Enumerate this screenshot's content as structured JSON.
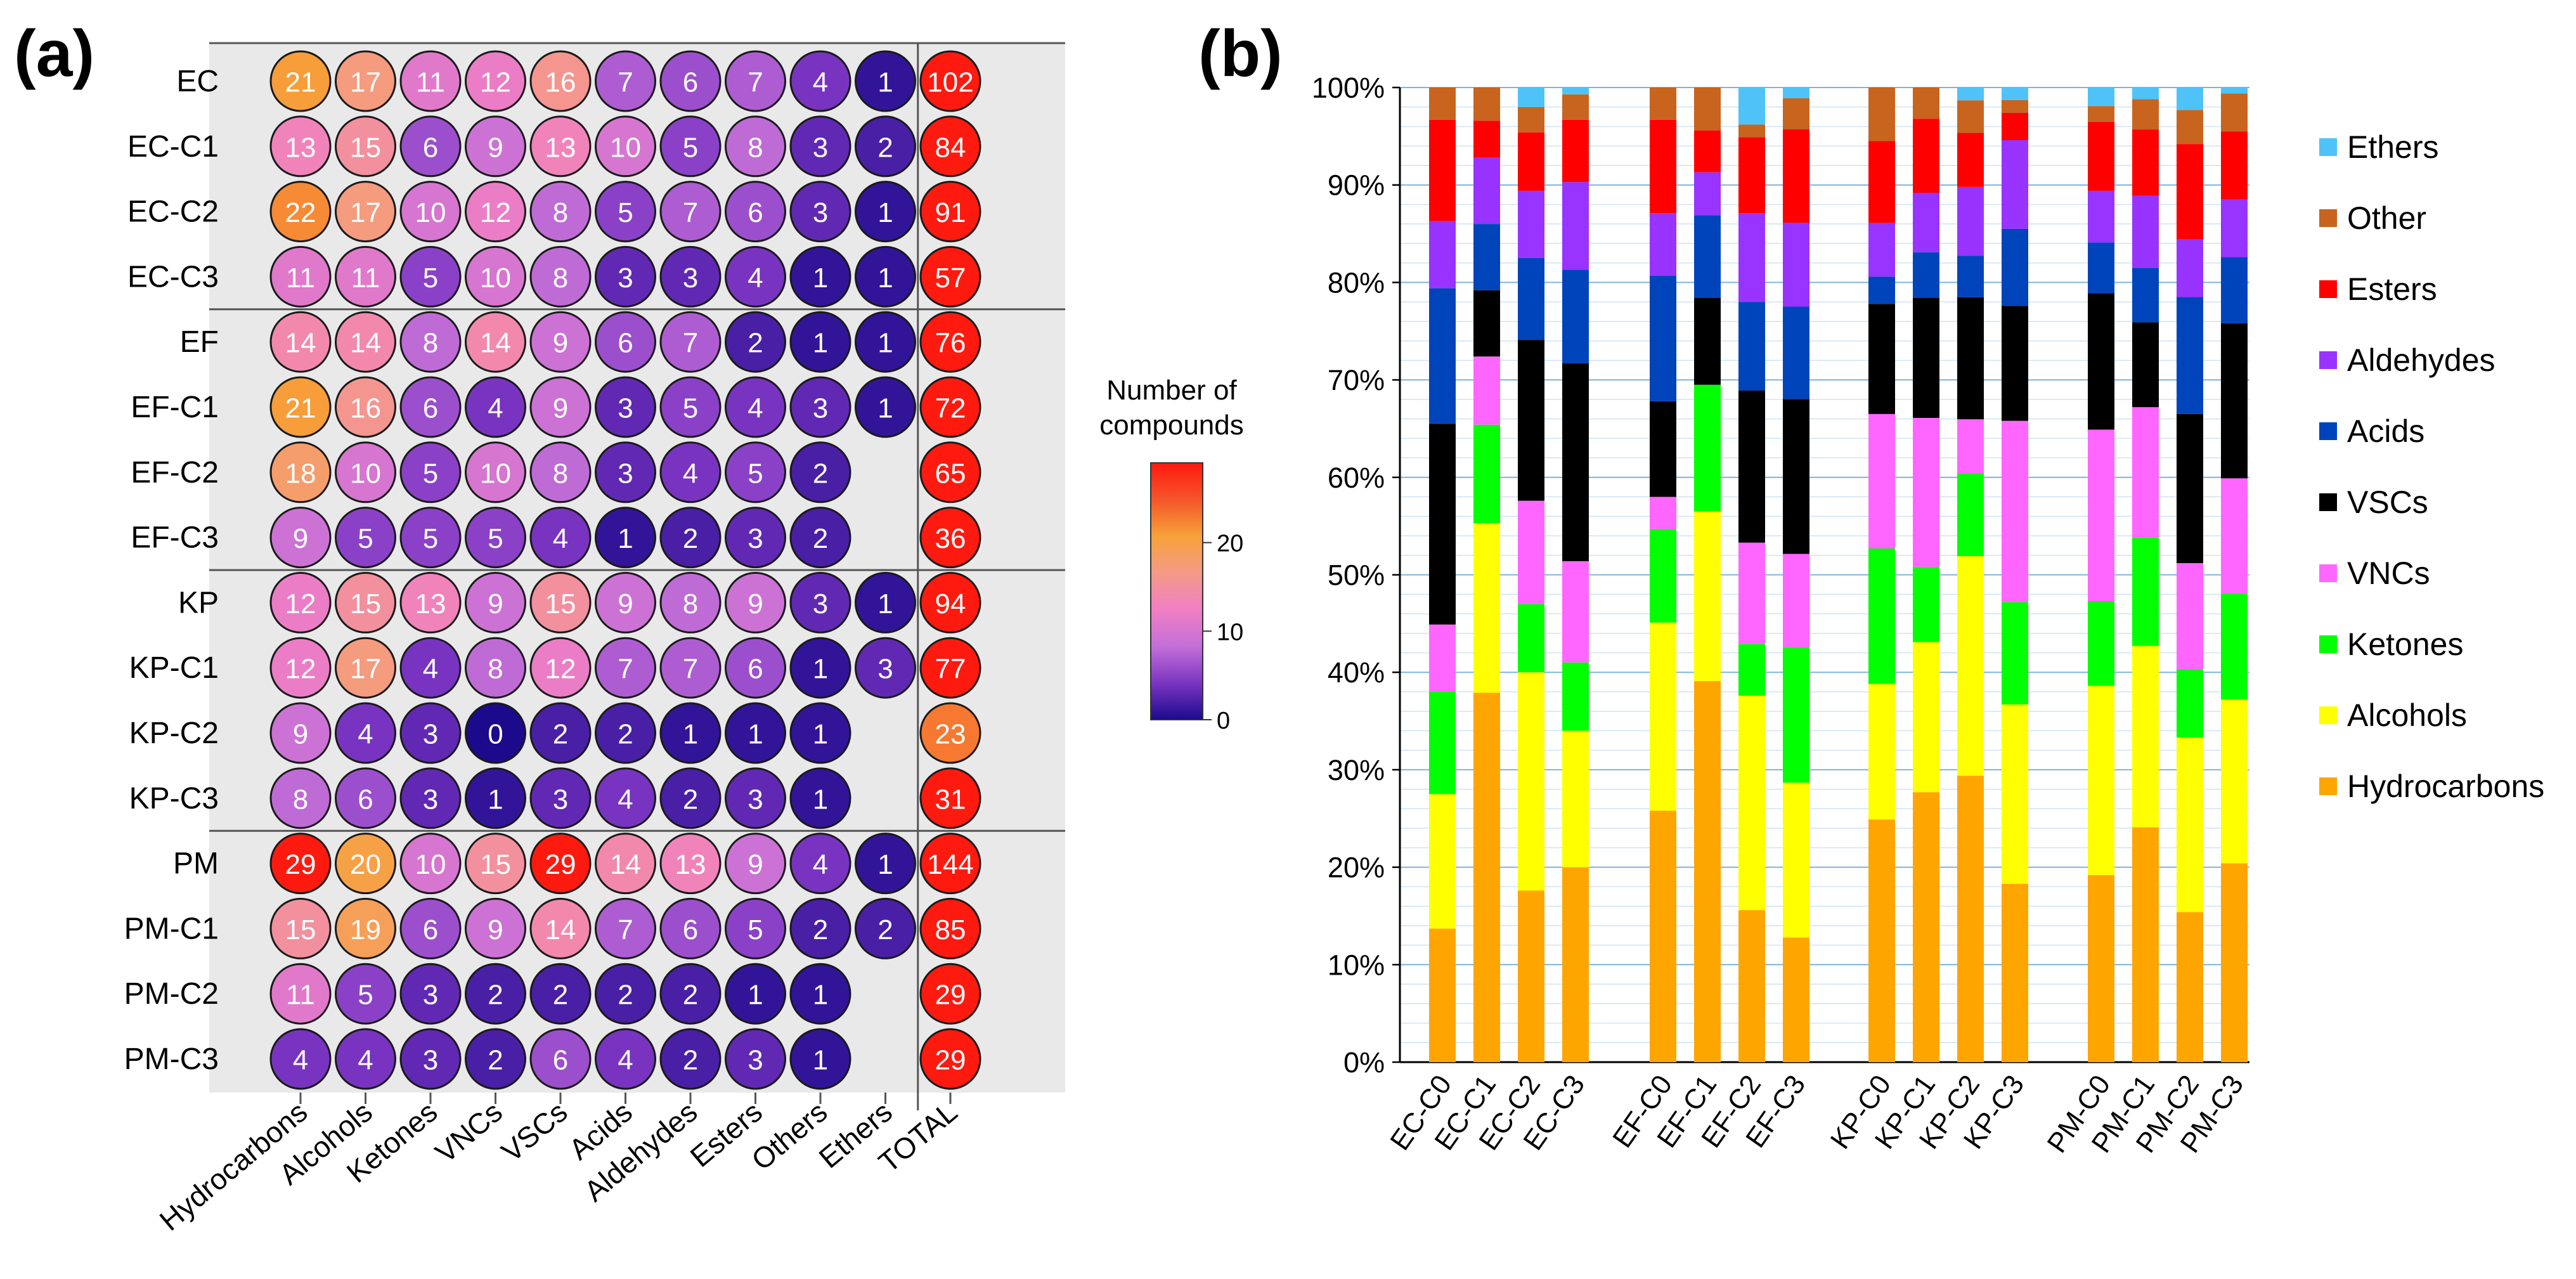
{
  "panel_a_label": "(a)",
  "panel_b_label": "(b)",
  "colorbar": {
    "title_line1": "Number of",
    "title_line2": "compounds",
    "ticks": [
      "0",
      "10",
      "20"
    ],
    "min": 0,
    "max": 29,
    "stops": [
      "#1b0a8c",
      "#7b35c2",
      "#c46fd8",
      "#f07fc4",
      "#f59a86",
      "#f7a23a",
      "#f5552a",
      "#ff1a0f"
    ]
  },
  "chart_data": [
    {
      "type": "heatmap",
      "title": "",
      "rows": [
        "EC",
        "EC-C1",
        "EC-C2",
        "EC-C3",
        "EF",
        "EF-C1",
        "EF-C2",
        "EF-C3",
        "KP",
        "KP-C1",
        "KP-C2",
        "KP-C3",
        "PM",
        "PM-C1",
        "PM-C2",
        "PM-C3"
      ],
      "columns": [
        "Hydrocarbons",
        "Alcohols",
        "Ketones",
        "VNCs",
        "VSCs",
        "Acids",
        "Aldehydes",
        "Esters",
        "Others",
        "Ethers",
        "TOTAL"
      ],
      "values": [
        [
          21,
          17,
          11,
          12,
          16,
          7,
          6,
          7,
          4,
          1,
          102
        ],
        [
          13,
          15,
          6,
          9,
          13,
          10,
          5,
          8,
          3,
          2,
          84
        ],
        [
          22,
          17,
          10,
          12,
          8,
          5,
          7,
          6,
          3,
          1,
          91
        ],
        [
          11,
          11,
          5,
          10,
          8,
          3,
          3,
          4,
          1,
          1,
          57
        ],
        [
          14,
          14,
          8,
          14,
          9,
          6,
          7,
          2,
          1,
          1,
          76
        ],
        [
          21,
          16,
          6,
          4,
          9,
          3,
          5,
          4,
          3,
          1,
          72
        ],
        [
          18,
          10,
          5,
          10,
          8,
          3,
          4,
          5,
          2,
          null,
          65
        ],
        [
          9,
          5,
          5,
          5,
          4,
          1,
          2,
          3,
          2,
          null,
          36
        ],
        [
          12,
          15,
          13,
          9,
          15,
          9,
          8,
          9,
          3,
          1,
          94
        ],
        [
          12,
          17,
          4,
          8,
          12,
          7,
          7,
          6,
          1,
          3,
          77
        ],
        [
          9,
          4,
          3,
          0,
          2,
          2,
          1,
          1,
          1,
          null,
          23
        ],
        [
          8,
          6,
          3,
          1,
          3,
          4,
          2,
          3,
          1,
          null,
          31
        ],
        [
          29,
          20,
          10,
          15,
          29,
          14,
          13,
          9,
          4,
          1,
          144
        ],
        [
          15,
          19,
          6,
          9,
          14,
          7,
          6,
          5,
          2,
          2,
          85
        ],
        [
          11,
          5,
          3,
          2,
          2,
          2,
          2,
          1,
          1,
          null,
          29
        ],
        [
          4,
          4,
          3,
          2,
          6,
          4,
          2,
          3,
          1,
          null,
          29
        ]
      ]
    },
    {
      "type": "bar",
      "stacked": true,
      "percent": true,
      "title": "",
      "xlabel": "",
      "ylabel": "",
      "ylim": [
        0,
        100
      ],
      "yticks": [
        "0%",
        "10%",
        "20%",
        "30%",
        "40%",
        "50%",
        "60%",
        "70%",
        "80%",
        "90%",
        "100%"
      ],
      "categories": [
        "EC-C0",
        "EC-C1",
        "EC-C2",
        "EC-C3",
        "EF-C0",
        "EF-C1",
        "EF-C2",
        "EF-C3",
        "KP-C0",
        "KP-C1",
        "KP-C2",
        "KP-C3",
        "PM-C0",
        "PM-C1",
        "PM-C2",
        "PM-C3"
      ],
      "series": [
        {
          "name": "Hydrocarbons",
          "color": "#ffa500",
          "values": [
            13.7,
            37.9,
            17.6,
            20.0,
            25.8,
            39.1,
            15.6,
            12.8,
            24.9,
            27.7,
            29.1,
            18.3,
            19.2,
            24.1,
            15.4,
            20.4
          ]
        },
        {
          "name": "Alcohols",
          "color": "#ffff00",
          "values": [
            13.8,
            17.4,
            22.4,
            14.0,
            19.3,
            17.4,
            22.0,
            15.9,
            13.9,
            15.4,
            22.3,
            18.4,
            19.4,
            18.6,
            17.9,
            16.8
          ]
        },
        {
          "name": "Ketones",
          "color": "#00ff00",
          "values": [
            10.5,
            10.1,
            7.0,
            7.0,
            9.6,
            13.0,
            5.3,
            13.9,
            13.9,
            7.7,
            8.4,
            10.5,
            8.7,
            11.1,
            7.0,
            10.9
          ]
        },
        {
          "name": "VNCs",
          "color": "#ff66ff",
          "values": [
            6.9,
            7.0,
            10.6,
            10.4,
            3.3,
            0.0,
            10.4,
            9.6,
            13.8,
            15.3,
            5.5,
            18.6,
            17.6,
            13.4,
            10.9,
            11.8
          ]
        },
        {
          "name": "VSCs",
          "color": "#000000",
          "values": [
            20.6,
            6.8,
            16.5,
            20.3,
            9.8,
            8.9,
            15.6,
            15.9,
            11.3,
            12.3,
            12.4,
            11.8,
            14.0,
            8.7,
            15.3,
            15.9
          ]
        },
        {
          "name": "Acids",
          "color": "#0044bb",
          "values": [
            13.9,
            6.8,
            8.4,
            9.6,
            12.9,
            8.5,
            9.1,
            9.5,
            2.8,
            4.7,
            4.2,
            7.9,
            5.2,
            5.6,
            12.0,
            6.8
          ]
        },
        {
          "name": "Aldehydes",
          "color": "#9933ff",
          "values": [
            6.9,
            6.8,
            6.9,
            9.0,
            6.4,
            4.4,
            9.1,
            8.6,
            5.5,
            6.1,
            7.0,
            9.1,
            5.3,
            7.4,
            5.9,
            5.9
          ]
        },
        {
          "name": "Esters",
          "color": "#ff0000",
          "values": [
            10.4,
            3.8,
            6.0,
            6.4,
            9.6,
            4.3,
            7.8,
            9.6,
            8.4,
            7.6,
            5.5,
            2.8,
            7.1,
            6.8,
            9.8,
            7.0
          ]
        },
        {
          "name": "Other",
          "color": "#c8641e",
          "values": [
            3.3,
            3.4,
            2.6,
            2.6,
            3.3,
            4.4,
            1.3,
            3.2,
            5.5,
            3.2,
            3.3,
            1.3,
            1.6,
            3.1,
            3.5,
            3.9
          ]
        },
        {
          "name": "Ethers",
          "color": "#4fc3f7",
          "values": [
            0.0,
            0.0,
            2.0,
            0.7,
            0.0,
            0.0,
            3.8,
            1.1,
            0.0,
            0.0,
            1.3,
            1.3,
            1.9,
            1.2,
            2.3,
            0.6
          ]
        }
      ],
      "legend": {
        "position": "right",
        "order": [
          "Ethers",
          "Other",
          "Esters",
          "Aldehydes",
          "Acids",
          "VSCs",
          "VNCs",
          "Ketones",
          "Alcohols",
          "Hydrocarbons"
        ]
      }
    }
  ]
}
